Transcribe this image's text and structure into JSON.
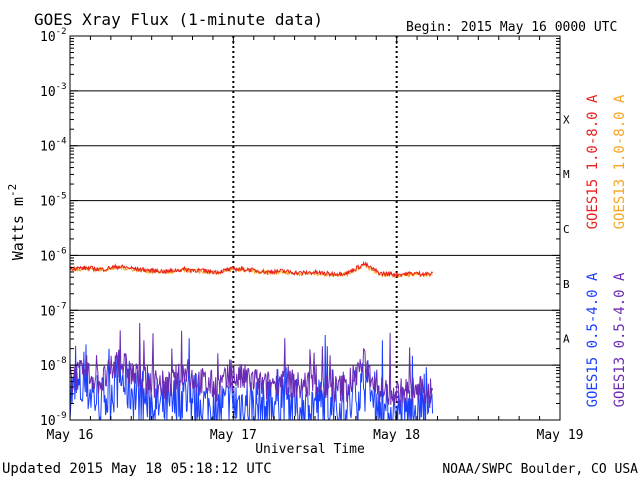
{
  "header": {
    "title": "GOES Xray Flux (1-minute data)",
    "begin": "Begin:  2015 May 16 0000 UTC"
  },
  "footer": {
    "updated": "Updated 2015 May 18 05:18:12 UTC",
    "credit": "NOAA/SWPC Boulder, CO USA"
  },
  "colors": {
    "goes15_long": "#e8211d",
    "goes13_long": "#f5a623",
    "goes15_short": "#1a3fff",
    "goes13_short": "#6a2bb3",
    "axes": "#000000"
  },
  "chart_data": {
    "type": "line",
    "yscale": "log",
    "ylim": [
      1e-09,
      0.01
    ],
    "xlim": [
      0,
      3
    ],
    "ylabel": "Watts m⁻²",
    "xlabel": "Universal Time",
    "x_unit": "days since 2015 May 16 0000 UTC",
    "x_ticks": [
      {
        "x": 0,
        "label": "May 16"
      },
      {
        "x": 1,
        "label": "May 17"
      },
      {
        "x": 2,
        "label": "May 18"
      },
      {
        "x": 3,
        "label": "May 19"
      }
    ],
    "y_ticks": [
      {
        "exp": -2,
        "label": "10",
        "sup": "-2"
      },
      {
        "exp": -3,
        "label": "10",
        "sup": "-3"
      },
      {
        "exp": -4,
        "label": "10",
        "sup": "-4"
      },
      {
        "exp": -5,
        "label": "10",
        "sup": "-5"
      },
      {
        "exp": -6,
        "label": "10",
        "sup": "-6"
      },
      {
        "exp": -7,
        "label": "10",
        "sup": "-7"
      },
      {
        "exp": -8,
        "label": "10",
        "sup": "-8"
      },
      {
        "exp": -9,
        "label": "10",
        "sup": "-9"
      }
    ],
    "flare_classes": [
      {
        "label": "X",
        "lo": -4,
        "hi": -3
      },
      {
        "label": "M",
        "lo": -5,
        "hi": -4
      },
      {
        "label": "C",
        "lo": -6,
        "hi": -5
      },
      {
        "label": "B",
        "lo": -7,
        "hi": -6
      },
      {
        "label": "A",
        "lo": -8,
        "hi": -7
      }
    ],
    "grid": true,
    "series": [
      {
        "name": "GOES15 1.0-8.0 A",
        "color_key": "goes15_long",
        "x": [
          0,
          0.1,
          0.2,
          0.3,
          0.4,
          0.5,
          0.6,
          0.7,
          0.8,
          0.9,
          1.0,
          1.1,
          1.2,
          1.3,
          1.4,
          1.5,
          1.6,
          1.7,
          1.8,
          1.9,
          2.0,
          2.1,
          2.22
        ],
        "values": [
          5.8e-07,
          5.9e-07,
          5.6e-07,
          6.3e-07,
          5.7e-07,
          5.3e-07,
          5.1e-07,
          5.6e-07,
          5.3e-07,
          5e-07,
          5.7e-07,
          5.5e-07,
          5e-07,
          5.2e-07,
          4.8e-07,
          4.9e-07,
          4.6e-07,
          4.8e-07,
          7e-07,
          4.7e-07,
          4.5e-07,
          4.7e-07,
          4.6e-07
        ]
      },
      {
        "name": "GOES13 1.0-8.0 A",
        "color_key": "goes13_long",
        "x": [
          0,
          0.1,
          0.2,
          0.3,
          0.4,
          0.5,
          0.6,
          0.7,
          0.8,
          0.9,
          1.0,
          1.1,
          1.2,
          1.3,
          1.4,
          1.5,
          1.6,
          1.7,
          1.8,
          1.9,
          2.0,
          2.1,
          2.22
        ],
        "values": [
          5.6e-07,
          5.7e-07,
          5.4e-07,
          6e-07,
          5.5e-07,
          5.1e-07,
          4.9e-07,
          5.4e-07,
          5.1e-07,
          4.8e-07,
          5.5e-07,
          5.3e-07,
          4.8e-07,
          5e-07,
          4.6e-07,
          4.7e-07,
          4.4e-07,
          4.6e-07,
          6.6e-07,
          4.5e-07,
          4.3e-07,
          4.5e-07,
          4.4e-07
        ]
      },
      {
        "name": "GOES15 0.5-4.0 A",
        "color_key": "goes15_short",
        "x": [
          0,
          0.1,
          0.2,
          0.3,
          0.4,
          0.5,
          0.6,
          0.7,
          0.8,
          0.9,
          1.0,
          1.1,
          1.2,
          1.3,
          1.4,
          1.5,
          1.6,
          1.7,
          1.8,
          1.9,
          2.0,
          2.1,
          2.22
        ],
        "values": [
          3e-09,
          4e-09,
          2e-09,
          6e-09,
          3e-09,
          2e-09,
          1.5e-09,
          3e-09,
          2e-09,
          1.5e-09,
          2e-09,
          2e-09,
          1.5e-09,
          3e-09,
          1.5e-09,
          2e-09,
          1.5e-09,
          1.5e-09,
          5e-09,
          1.5e-09,
          1.2e-09,
          1.5e-09,
          1.2e-09
        ]
      },
      {
        "name": "GOES13 0.5-4.0 A",
        "color_key": "goes13_short",
        "x": [
          0,
          0.1,
          0.2,
          0.3,
          0.4,
          0.5,
          0.6,
          0.7,
          0.8,
          0.9,
          1.0,
          1.1,
          1.2,
          1.3,
          1.4,
          1.5,
          1.6,
          1.7,
          1.8,
          1.9,
          2.0,
          2.1,
          2.22
        ],
        "values": [
          6e-09,
          7e-09,
          5e-09,
          1.2e-08,
          6e-09,
          5e-09,
          4e-09,
          7e-09,
          5e-09,
          4e-09,
          6e-09,
          5.5e-09,
          4e-09,
          6e-09,
          4e-09,
          5e-09,
          3.5e-09,
          4e-09,
          1.1e-08,
          3.5e-09,
          3e-09,
          3.5e-09,
          3e-09
        ]
      }
    ]
  }
}
